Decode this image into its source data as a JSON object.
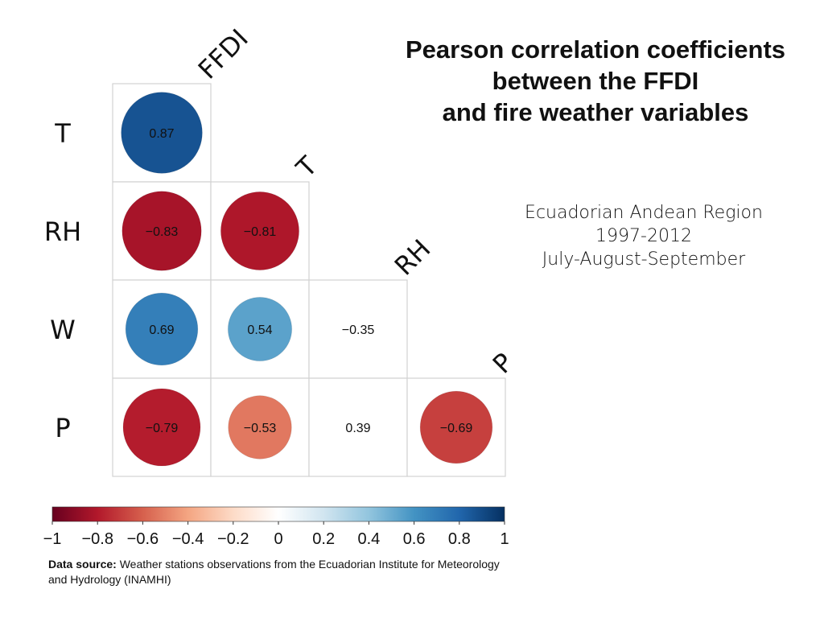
{
  "title_lines": [
    "Pearson correlation coefficients",
    "between the FFDI",
    "and fire weather variables"
  ],
  "subtitle_lines": [
    "Ecuadorian Andean Region",
    "1997-2012",
    "July-August-September"
  ],
  "source": {
    "label": "Data source:",
    "text": " Weather stations observations from the Ecuadorian Institute for Meteorology and Hydrology (INAMHI)"
  },
  "chart_data": {
    "type": "heatmap",
    "style": "correlation-circles-lower-triangle",
    "column_labels": [
      "FFDI",
      "T",
      "RH",
      "P"
    ],
    "row_labels": [
      "T",
      "RH",
      "W",
      "P"
    ],
    "cells": [
      {
        "row": 0,
        "col": 0,
        "value": 0.87,
        "label": "0.87",
        "show_circle": true
      },
      {
        "row": 1,
        "col": 0,
        "value": -0.83,
        "label": "−0.83",
        "show_circle": true
      },
      {
        "row": 1,
        "col": 1,
        "value": -0.81,
        "label": "−0.81",
        "show_circle": true
      },
      {
        "row": 2,
        "col": 0,
        "value": 0.69,
        "label": "0.69",
        "show_circle": true
      },
      {
        "row": 2,
        "col": 1,
        "value": 0.54,
        "label": "0.54",
        "show_circle": true
      },
      {
        "row": 2,
        "col": 2,
        "value": -0.35,
        "label": "−0.35",
        "show_circle": false
      },
      {
        "row": 3,
        "col": 0,
        "value": -0.79,
        "label": "−0.79",
        "show_circle": true
      },
      {
        "row": 3,
        "col": 1,
        "value": -0.53,
        "label": "−0.53",
        "show_circle": true
      },
      {
        "row": 3,
        "col": 2,
        "value": 0.39,
        "label": "0.39",
        "show_circle": false
      },
      {
        "row": 3,
        "col": 3,
        "value": -0.69,
        "label": "−0.69",
        "show_circle": true
      }
    ],
    "colorbar": {
      "range": [
        -1,
        1
      ],
      "ticks": [
        -1,
        -0.8,
        -0.6,
        -0.4,
        -0.2,
        0,
        0.2,
        0.4,
        0.6,
        0.8,
        1
      ],
      "tick_labels": [
        "−1",
        "−0.8",
        "−0.6",
        "−0.4",
        "−0.2",
        "0",
        "0.2",
        "0.4",
        "0.6",
        "0.8",
        "1"
      ],
      "colors": [
        "#67001f",
        "#b2182b",
        "#d6604d",
        "#f4a582",
        "#fddbc7",
        "#ffffff",
        "#d1e5f0",
        "#92c5de",
        "#4393c3",
        "#2166ac",
        "#053061"
      ]
    }
  }
}
